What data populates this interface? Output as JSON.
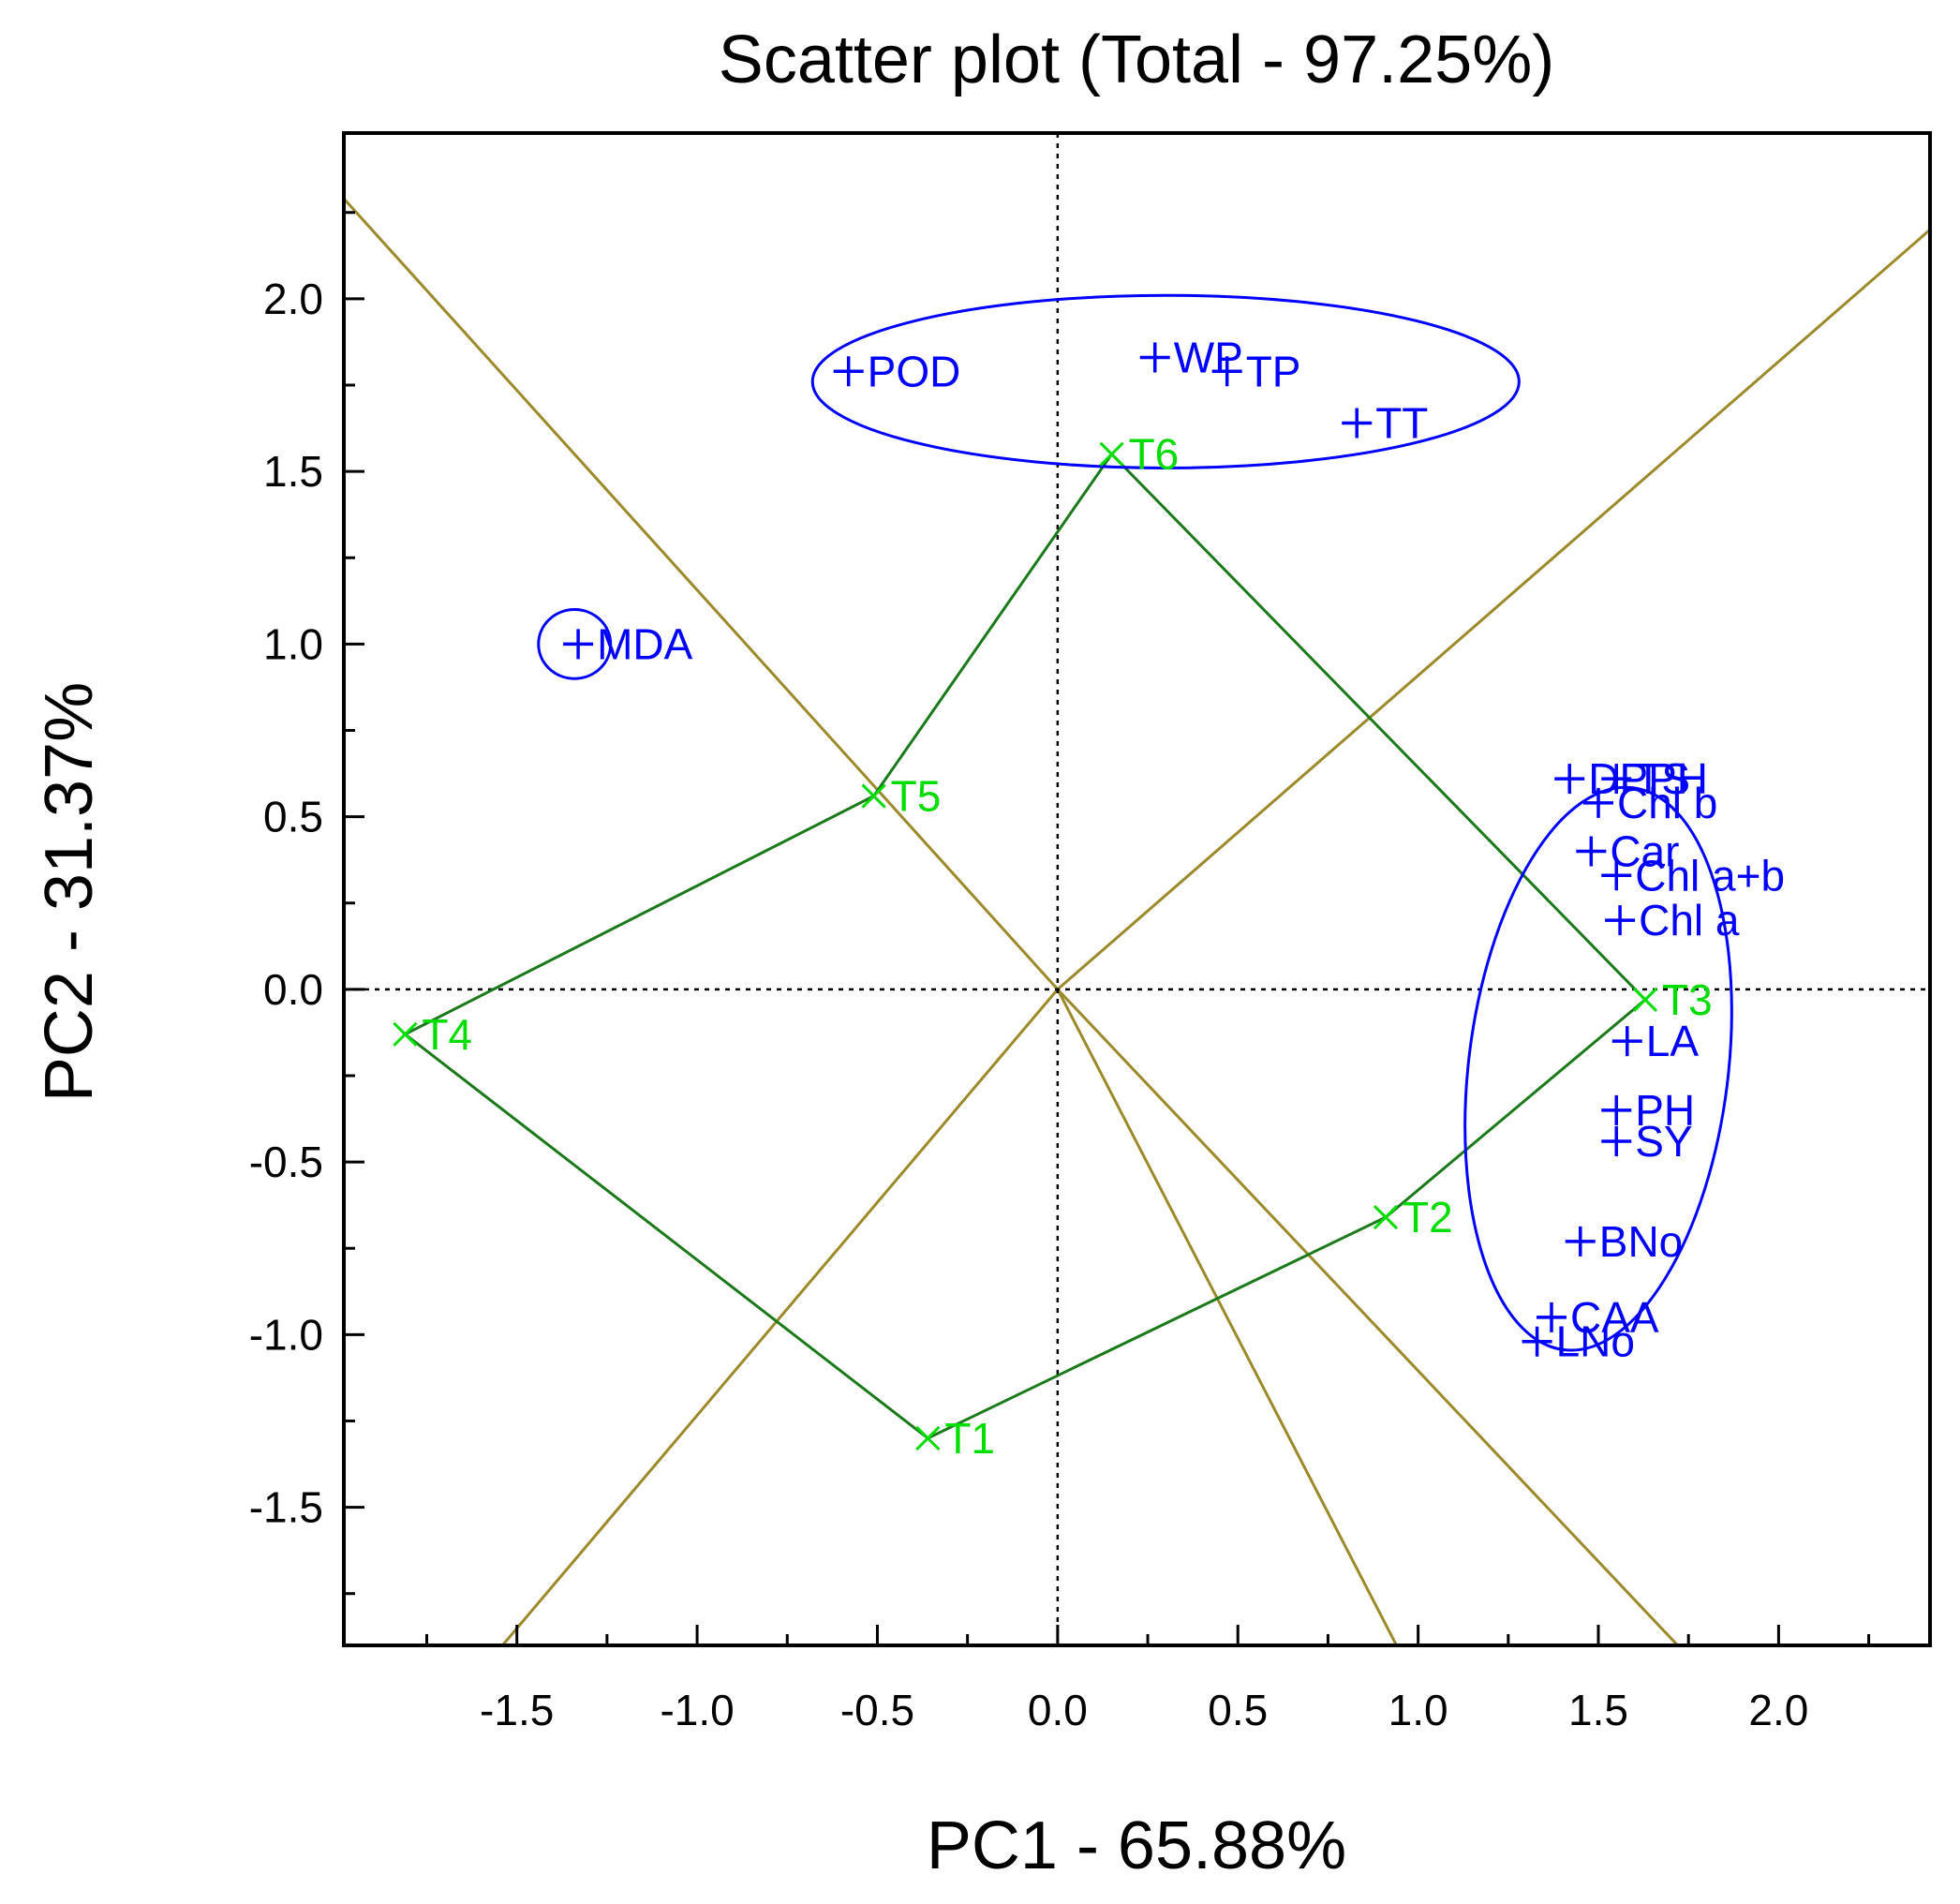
{
  "chart_data": {
    "type": "scatter",
    "subtype": "GGE biplot (which-won-where)",
    "title": "Scatter plot (Total - 97.25%)",
    "xlabel": "PC1 - 65.88%",
    "ylabel": "PC2 - 31.37%",
    "xlim": [
      -1.98,
      2.42
    ],
    "ylim": [
      -1.9,
      2.48
    ],
    "xticks": [
      "-1.5",
      "-1.0",
      "-0.5",
      "0.0",
      "0.5",
      "1.0",
      "1.5",
      "2.0"
    ],
    "xtick_values": [
      -1.5,
      -1.0,
      -0.5,
      0.0,
      0.5,
      1.0,
      1.5,
      2.0
    ],
    "yticks": [
      "2.0",
      "1.5",
      "1.0",
      "0.5",
      "0.0",
      "-0.5",
      "-1.0",
      "-1.5"
    ],
    "ytick_values": [
      2.0,
      1.5,
      1.0,
      0.5,
      0.0,
      -0.5,
      -1.0,
      -1.5
    ],
    "colors": {
      "variables": "#0000ff",
      "treatments": "#00dd00",
      "polygon": "#1a7a1a",
      "sector_lines": "#9c8a2a",
      "axis": "#000000"
    },
    "variables": [
      {
        "label": "POD",
        "x": -0.58,
        "y": 1.79
      },
      {
        "label": "WP",
        "x": 0.27,
        "y": 1.83
      },
      {
        "label": "TP",
        "x": 0.47,
        "y": 1.79
      },
      {
        "label": "TT",
        "x": 0.83,
        "y": 1.64
      },
      {
        "label": "MDA",
        "x": -1.33,
        "y": 1.0
      },
      {
        "label": "DPPH",
        "x": 1.42,
        "y": 0.61
      },
      {
        "label": "TS",
        "x": 1.55,
        "y": 0.61
      },
      {
        "label": "Chl b",
        "x": 1.5,
        "y": 0.54
      },
      {
        "label": "Car",
        "x": 1.48,
        "y": 0.4
      },
      {
        "label": "Chl a+b",
        "x": 1.55,
        "y": 0.33
      },
      {
        "label": "Chl a",
        "x": 1.56,
        "y": 0.2
      },
      {
        "label": "LA",
        "x": 1.58,
        "y": -0.15
      },
      {
        "label": "PH",
        "x": 1.55,
        "y": -0.35
      },
      {
        "label": "SY",
        "x": 1.55,
        "y": -0.44
      },
      {
        "label": "BNo",
        "x": 1.45,
        "y": -0.73
      },
      {
        "label": "CAA",
        "x": 1.37,
        "y": -0.95
      },
      {
        "label": "LNo",
        "x": 1.33,
        "y": -1.02
      }
    ],
    "treatments": [
      {
        "label": "T1",
        "x": -0.36,
        "y": -1.3
      },
      {
        "label": "T2",
        "x": 0.91,
        "y": -0.66
      },
      {
        "label": "T3",
        "x": 1.63,
        "y": -0.03
      },
      {
        "label": "T4",
        "x": -1.81,
        "y": -0.13
      },
      {
        "label": "T5",
        "x": -0.51,
        "y": 0.56
      },
      {
        "label": "T6",
        "x": 0.15,
        "y": 1.55
      }
    ],
    "polygon_order": [
      "T6",
      "T3",
      "T2",
      "T1",
      "T4",
      "T5"
    ],
    "sector_line_ends": [
      {
        "x": -1.98,
        "y": 2.29
      },
      {
        "x": 2.42,
        "y": 2.2
      },
      {
        "x": -1.54,
        "y": -1.9
      },
      {
        "x": 0.94,
        "y": -1.9
      },
      {
        "x": 1.72,
        "y": -1.9
      }
    ],
    "ellipses": [
      {
        "group": "top",
        "cx": 0.3,
        "cy": 1.76,
        "rx": 0.98,
        "ry": 0.25,
        "angle": 0
      },
      {
        "group": "MDA",
        "cx": -1.34,
        "cy": 1.0,
        "rx": 0.1,
        "ry": 0.1,
        "angle": 0
      },
      {
        "group": "right",
        "cx": 1.5,
        "cy": -0.23,
        "rx": 0.36,
        "ry": 0.82,
        "angle": 7
      }
    ]
  }
}
